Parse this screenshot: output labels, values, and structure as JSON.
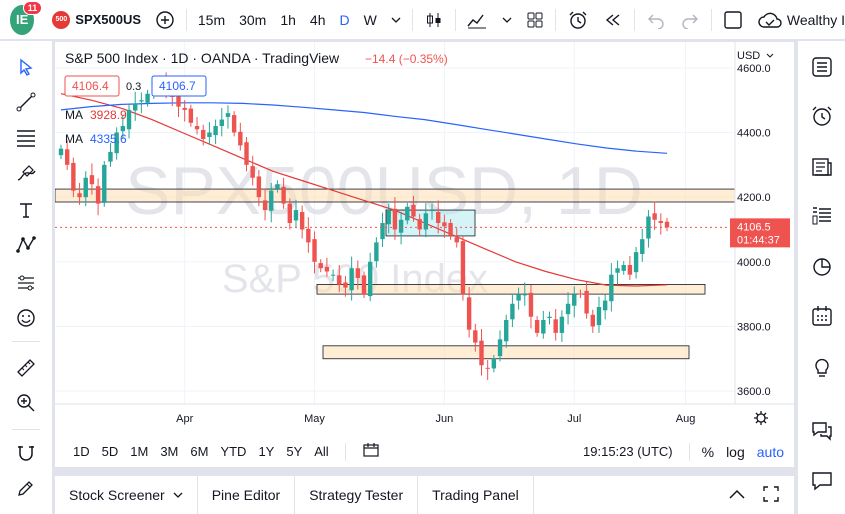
{
  "topbar": {
    "avatar_initials": "IE",
    "notification_count": "11",
    "symbol_icon_text": "500",
    "symbol": "SPX500US",
    "intervals": [
      "15m",
      "30m",
      "1h",
      "4h",
      "D",
      "W"
    ],
    "active_interval": "D",
    "layout_name": "Wealthy I"
  },
  "chart": {
    "title": "S&P 500 Index · 1D · OANDA · TradingView",
    "change": "−14.4 (−0.35%)",
    "bid": "4106.4",
    "spread": "0.3",
    "ask": "4106.7",
    "ma1_label": "MA",
    "ma1_value": "3928.9",
    "ma2_label": "MA",
    "ma2_value": "4335.6",
    "currency": "USD",
    "watermark_symbol": "SPX500USD, 1D",
    "watermark_name": "S&P 500 Index",
    "last_price": "4106.5",
    "countdown": "01:44:37",
    "price_ticks": [
      "4600.0",
      "4400.0",
      "4200.0",
      "4000.0",
      "3800.0",
      "3600.0"
    ],
    "time_ticks": [
      "Apr",
      "May",
      "Jun",
      "Jul",
      "Aug"
    ],
    "colors": {
      "up": "#26a69a",
      "down": "#ef5350",
      "ma1": "#e53935",
      "ma2": "#2962ff"
    }
  },
  "chart_data": {
    "type": "candlestick",
    "title": "S&P 500 Index · 1D · OANDA · TradingView",
    "price_range": [
      3560,
      4680
    ],
    "price_ticks": [
      4600,
      4400,
      4200,
      4000,
      3800,
      3600
    ],
    "last_price": 4106.5,
    "ma_series": [
      {
        "label": "MA",
        "value": 3928.9,
        "color": "#e53935",
        "trend": [
          4520,
          4500,
          4475,
          4440,
          4400,
          4360,
          4320,
          4280,
          4250,
          4220,
          4190,
          4160,
          4120,
          4080,
          4040,
          4000,
          3970,
          3945,
          3928,
          3925,
          3928.9
        ]
      },
      {
        "label": "MA",
        "value": 4335.6,
        "color": "#2962ff",
        "trend": [
          4470,
          4480,
          4487,
          4490,
          4492,
          4492,
          4490,
          4485,
          4478,
          4470,
          4462,
          4450,
          4440,
          4425,
          4410,
          4395,
          4380,
          4365,
          4352,
          4342,
          4335.6
        ]
      }
    ],
    "closes": [
      4350,
      4300,
      4220,
      4200,
      4260,
      4240,
      4180,
      4300,
      4340,
      4400,
      4420,
      4470,
      4490,
      4500,
      4520,
      4540,
      4560,
      4530,
      4510,
      4480,
      4470,
      4430,
      4410,
      4380,
      4400,
      4420,
      4440,
      4460,
      4400,
      4360,
      4300,
      4260,
      4200,
      4160,
      4220,
      4240,
      4180,
      4120,
      4160,
      4100,
      4060,
      4000,
      3980,
      3970,
      3960,
      3930,
      3920,
      3980,
      3950,
      3900,
      4000,
      4060,
      4120,
      4160,
      4100,
      4130,
      4170,
      4140,
      4100,
      4150,
      4160,
      4120,
      4110,
      4080,
      4060,
      3900,
      3790,
      3750,
      3680,
      3670,
      3700,
      3760,
      3820,
      3870,
      3900,
      3900,
      3830,
      3780,
      3820,
      3830,
      3780,
      3830,
      3870,
      3900,
      3900,
      3840,
      3800,
      3860,
      3880,
      3960,
      3980,
      3990,
      3960,
      4030,
      4070,
      4140,
      4130,
      4120,
      4106.5
    ],
    "horizontal_zones": [
      {
        "from": 4185,
        "to": 4225
      },
      {
        "from": 3900,
        "to": 3930
      },
      {
        "from": 3700,
        "to": 3740
      }
    ],
    "rectangle_zone": {
      "price_from": 4080,
      "price_to": 4160
    },
    "x_labels": [
      "Apr",
      "May",
      "Jun",
      "Jul",
      "Aug"
    ]
  },
  "range_bar": {
    "ranges": [
      "1D",
      "5D",
      "1M",
      "3M",
      "6M",
      "YTD",
      "1Y",
      "5Y",
      "All"
    ],
    "time": "19:15:23 (UTC)",
    "percent": "%",
    "log": "log",
    "auto": "auto"
  },
  "bottom_tabs": [
    "Stock Screener",
    "Pine Editor",
    "Strategy Tester",
    "Trading Panel"
  ]
}
